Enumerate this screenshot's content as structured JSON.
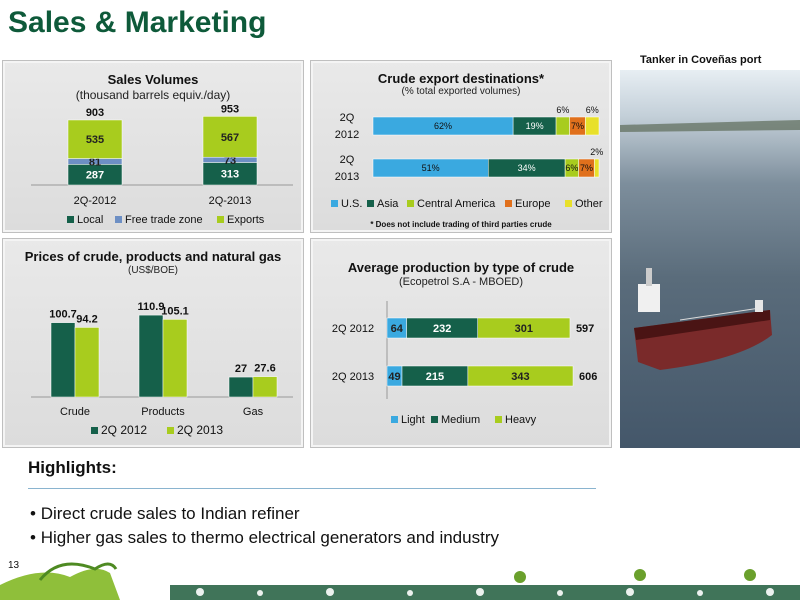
{
  "title": "Sales & Marketing",
  "photo_label": "Tanker in Coveñas port",
  "highlights": {
    "title": "Highlights:",
    "bullets": [
      "Direct crude sales to Indian refiner",
      "Higher gas sales to thermo electrical generators and industry"
    ]
  },
  "page_number": "13",
  "colors": {
    "brand_green": "#0e5a3a",
    "dark_green": "#15604a",
    "lime": "#a8cc1e",
    "blue": "#3aa9e0",
    "steel_blue": "#6d8fc4",
    "orange": "#e0701c",
    "yellow": "#e8e02a"
  },
  "chart_data": [
    {
      "type": "bar",
      "stacked": true,
      "title": "Sales Volumes",
      "subtitle": "(thousand barrels equiv./day)",
      "categories": [
        "2Q-2012",
        "2Q-2013"
      ],
      "totals": [
        "903",
        "953"
      ],
      "series": [
        {
          "name": "Local",
          "values": [
            287,
            313
          ],
          "color": "#15604a"
        },
        {
          "name": "Free trade zone",
          "values": [
            81,
            73
          ],
          "color": "#6d8fc4"
        },
        {
          "name": "Exports",
          "values": [
            535,
            567
          ],
          "color": "#a8cc1e"
        }
      ],
      "ylim": [
        0,
        1000
      ]
    },
    {
      "type": "bar",
      "orientation": "horizontal",
      "stacked": true,
      "title": "Crude export destinations*",
      "subtitle": "(% total exported volumes)",
      "footnote": "* Does not include trading of third parties crude",
      "categories": [
        [
          "2Q",
          "2012"
        ],
        [
          "2Q",
          "2013"
        ]
      ],
      "series": [
        {
          "name": "U.S.",
          "values": [
            62,
            51
          ],
          "color": "#3aa9e0"
        },
        {
          "name": "Asia",
          "values": [
            19,
            34
          ],
          "color": "#15604a"
        },
        {
          "name": "Central America",
          "values": [
            6,
            6
          ],
          "color": "#a8cc1e"
        },
        {
          "name": "Europe",
          "values": [
            7,
            7
          ],
          "color": "#e0701c"
        },
        {
          "name": "Other",
          "values": [
            6,
            2
          ],
          "color": "#e8e02a"
        }
      ],
      "unit": "%",
      "xlim": [
        0,
        100
      ],
      "outside_labels": [
        {
          "row": 0,
          "series": 2
        },
        {
          "row": 0,
          "series": 4
        },
        {
          "row": 1,
          "series": 4
        }
      ]
    },
    {
      "type": "bar",
      "title": "Prices of crude, products and natural gas",
      "subtitle": "(US$/BOE)",
      "categories": [
        "Crude",
        "Products",
        "Gas"
      ],
      "series": [
        {
          "name": "2Q 2012",
          "values": [
            100.7,
            110.9,
            27.0
          ],
          "color": "#15604a"
        },
        {
          "name": "2Q 2013",
          "values": [
            94.2,
            105.1,
            27.6
          ],
          "color": "#a8cc1e"
        }
      ],
      "ylim": [
        0,
        130
      ]
    },
    {
      "type": "bar",
      "orientation": "horizontal",
      "stacked": true,
      "title": "Average production by type of crude",
      "subtitle": "(Ecopetrol S.A - MBOED)",
      "categories": [
        "2Q 2012",
        "2Q 2013"
      ],
      "totals": [
        "597",
        "606"
      ],
      "series": [
        {
          "name": "Light",
          "values": [
            64,
            49
          ],
          "color": "#3aa9e0"
        },
        {
          "name": "Medium",
          "values": [
            232,
            215
          ],
          "color": "#15604a"
        },
        {
          "name": "Heavy",
          "values": [
            301,
            343
          ],
          "color": "#a8cc1e"
        }
      ],
      "xlim": [
        0,
        620
      ]
    }
  ]
}
